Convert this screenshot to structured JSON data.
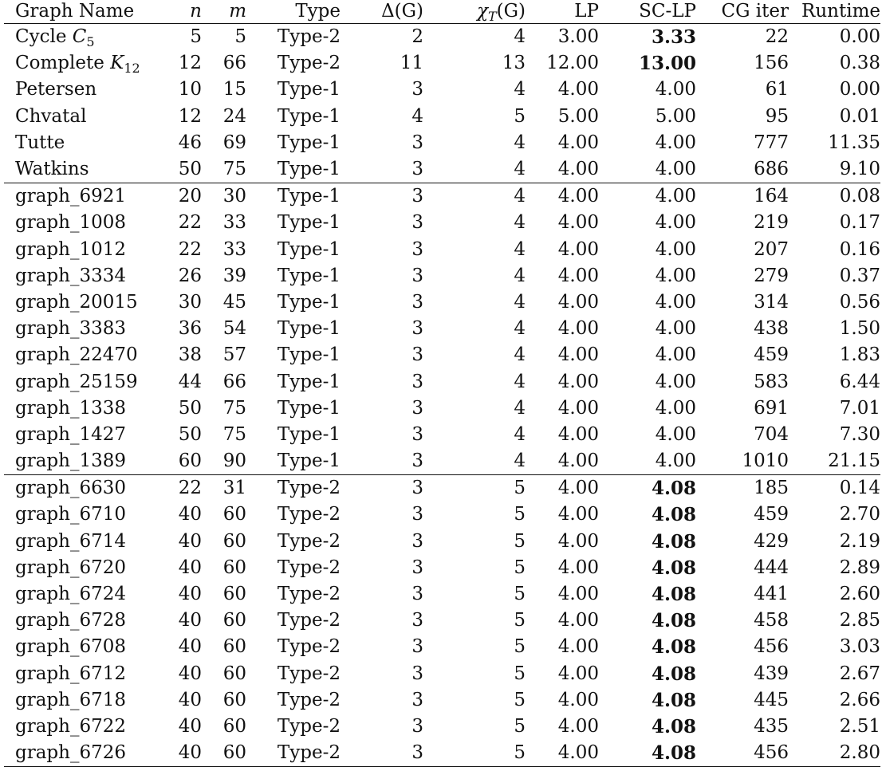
{
  "columns": {
    "name": "Graph Name",
    "n": "n",
    "m": "m",
    "type": "Type",
    "delta": "Δ(G)",
    "chi": "χ",
    "chi_sub": "T",
    "chi_suffix": "(G)",
    "lp": "LP",
    "sclp": "SC-LP",
    "cg": "CG iter",
    "runtime": "Runtime"
  },
  "rows": [
    {
      "name": "Cycle C",
      "name_sub": "5",
      "n": "5",
      "m": "5",
      "type": "Type-2",
      "delta": "2",
      "chi": "4",
      "lp": "3.00",
      "sclp": "3.33",
      "sclp_bold": true,
      "cg": "22",
      "runtime": "0.00",
      "group_start": false
    },
    {
      "name": "Complete K",
      "name_sub": "12",
      "n": "12",
      "m": "66",
      "type": "Type-2",
      "delta": "11",
      "chi": "13",
      "lp": "12.00",
      "sclp": "13.00",
      "sclp_bold": true,
      "cg": "156",
      "runtime": "0.38",
      "group_start": false
    },
    {
      "name": "Petersen",
      "name_sub": "",
      "n": "10",
      "m": "15",
      "type": "Type-1",
      "delta": "3",
      "chi": "4",
      "lp": "4.00",
      "sclp": "4.00",
      "sclp_bold": false,
      "cg": "61",
      "runtime": "0.00",
      "group_start": false
    },
    {
      "name": "Chvatal",
      "name_sub": "",
      "n": "12",
      "m": "24",
      "type": "Type-1",
      "delta": "4",
      "chi": "5",
      "lp": "5.00",
      "sclp": "5.00",
      "sclp_bold": false,
      "cg": "95",
      "runtime": "0.01",
      "group_start": false
    },
    {
      "name": "Tutte",
      "name_sub": "",
      "n": "46",
      "m": "69",
      "type": "Type-1",
      "delta": "3",
      "chi": "4",
      "lp": "4.00",
      "sclp": "4.00",
      "sclp_bold": false,
      "cg": "777",
      "runtime": "11.35",
      "group_start": false
    },
    {
      "name": "Watkins",
      "name_sub": "",
      "n": "50",
      "m": "75",
      "type": "Type-1",
      "delta": "3",
      "chi": "4",
      "lp": "4.00",
      "sclp": "4.00",
      "sclp_bold": false,
      "cg": "686",
      "runtime": "9.10",
      "group_start": false
    },
    {
      "name": "graph_6921",
      "name_sub": "",
      "n": "20",
      "m": "30",
      "type": "Type-1",
      "delta": "3",
      "chi": "4",
      "lp": "4.00",
      "sclp": "4.00",
      "sclp_bold": false,
      "cg": "164",
      "runtime": "0.08",
      "group_start": true
    },
    {
      "name": "graph_1008",
      "name_sub": "",
      "n": "22",
      "m": "33",
      "type": "Type-1",
      "delta": "3",
      "chi": "4",
      "lp": "4.00",
      "sclp": "4.00",
      "sclp_bold": false,
      "cg": "219",
      "runtime": "0.17",
      "group_start": false
    },
    {
      "name": "graph_1012",
      "name_sub": "",
      "n": "22",
      "m": "33",
      "type": "Type-1",
      "delta": "3",
      "chi": "4",
      "lp": "4.00",
      "sclp": "4.00",
      "sclp_bold": false,
      "cg": "207",
      "runtime": "0.16",
      "group_start": false
    },
    {
      "name": "graph_3334",
      "name_sub": "",
      "n": "26",
      "m": "39",
      "type": "Type-1",
      "delta": "3",
      "chi": "4",
      "lp": "4.00",
      "sclp": "4.00",
      "sclp_bold": false,
      "cg": "279",
      "runtime": "0.37",
      "group_start": false
    },
    {
      "name": "graph_20015",
      "name_sub": "",
      "n": "30",
      "m": "45",
      "type": "Type-1",
      "delta": "3",
      "chi": "4",
      "lp": "4.00",
      "sclp": "4.00",
      "sclp_bold": false,
      "cg": "314",
      "runtime": "0.56",
      "group_start": false
    },
    {
      "name": "graph_3383",
      "name_sub": "",
      "n": "36",
      "m": "54",
      "type": "Type-1",
      "delta": "3",
      "chi": "4",
      "lp": "4.00",
      "sclp": "4.00",
      "sclp_bold": false,
      "cg": "438",
      "runtime": "1.50",
      "group_start": false
    },
    {
      "name": "graph_22470",
      "name_sub": "",
      "n": "38",
      "m": "57",
      "type": "Type-1",
      "delta": "3",
      "chi": "4",
      "lp": "4.00",
      "sclp": "4.00",
      "sclp_bold": false,
      "cg": "459",
      "runtime": "1.83",
      "group_start": false
    },
    {
      "name": "graph_25159",
      "name_sub": "",
      "n": "44",
      "m": "66",
      "type": "Type-1",
      "delta": "3",
      "chi": "4",
      "lp": "4.00",
      "sclp": "4.00",
      "sclp_bold": false,
      "cg": "583",
      "runtime": "6.44",
      "group_start": false
    },
    {
      "name": "graph_1338",
      "name_sub": "",
      "n": "50",
      "m": "75",
      "type": "Type-1",
      "delta": "3",
      "chi": "4",
      "lp": "4.00",
      "sclp": "4.00",
      "sclp_bold": false,
      "cg": "691",
      "runtime": "7.01",
      "group_start": false
    },
    {
      "name": "graph_1427",
      "name_sub": "",
      "n": "50",
      "m": "75",
      "type": "Type-1",
      "delta": "3",
      "chi": "4",
      "lp": "4.00",
      "sclp": "4.00",
      "sclp_bold": false,
      "cg": "704",
      "runtime": "7.30",
      "group_start": false
    },
    {
      "name": "graph_1389",
      "name_sub": "",
      "n": "60",
      "m": "90",
      "type": "Type-1",
      "delta": "3",
      "chi": "4",
      "lp": "4.00",
      "sclp": "4.00",
      "sclp_bold": false,
      "cg": "1010",
      "runtime": "21.15",
      "group_start": false
    },
    {
      "name": "graph_6630",
      "name_sub": "",
      "n": "22",
      "m": "31",
      "type": "Type-2",
      "delta": "3",
      "chi": "5",
      "lp": "4.00",
      "sclp": "4.08",
      "sclp_bold": true,
      "cg": "185",
      "runtime": "0.14",
      "group_start": true
    },
    {
      "name": "graph_6710",
      "name_sub": "",
      "n": "40",
      "m": "60",
      "type": "Type-2",
      "delta": "3",
      "chi": "5",
      "lp": "4.00",
      "sclp": "4.08",
      "sclp_bold": true,
      "cg": "459",
      "runtime": "2.70",
      "group_start": false
    },
    {
      "name": "graph_6714",
      "name_sub": "",
      "n": "40",
      "m": "60",
      "type": "Type-2",
      "delta": "3",
      "chi": "5",
      "lp": "4.00",
      "sclp": "4.08",
      "sclp_bold": true,
      "cg": "429",
      "runtime": "2.19",
      "group_start": false
    },
    {
      "name": "graph_6720",
      "name_sub": "",
      "n": "40",
      "m": "60",
      "type": "Type-2",
      "delta": "3",
      "chi": "5",
      "lp": "4.00",
      "sclp": "4.08",
      "sclp_bold": true,
      "cg": "444",
      "runtime": "2.89",
      "group_start": false
    },
    {
      "name": "graph_6724",
      "name_sub": "",
      "n": "40",
      "m": "60",
      "type": "Type-2",
      "delta": "3",
      "chi": "5",
      "lp": "4.00",
      "sclp": "4.08",
      "sclp_bold": true,
      "cg": "441",
      "runtime": "2.60",
      "group_start": false
    },
    {
      "name": "graph_6728",
      "name_sub": "",
      "n": "40",
      "m": "60",
      "type": "Type-2",
      "delta": "3",
      "chi": "5",
      "lp": "4.00",
      "sclp": "4.08",
      "sclp_bold": true,
      "cg": "458",
      "runtime": "2.85",
      "group_start": false
    },
    {
      "name": "graph_6708",
      "name_sub": "",
      "n": "40",
      "m": "60",
      "type": "Type-2",
      "delta": "3",
      "chi": "5",
      "lp": "4.00",
      "sclp": "4.08",
      "sclp_bold": true,
      "cg": "456",
      "runtime": "3.03",
      "group_start": false
    },
    {
      "name": "graph_6712",
      "name_sub": "",
      "n": "40",
      "m": "60",
      "type": "Type-2",
      "delta": "3",
      "chi": "5",
      "lp": "4.00",
      "sclp": "4.08",
      "sclp_bold": true,
      "cg": "439",
      "runtime": "2.67",
      "group_start": false
    },
    {
      "name": "graph_6718",
      "name_sub": "",
      "n": "40",
      "m": "60",
      "type": "Type-2",
      "delta": "3",
      "chi": "5",
      "lp": "4.00",
      "sclp": "4.08",
      "sclp_bold": true,
      "cg": "445",
      "runtime": "2.66",
      "group_start": false
    },
    {
      "name": "graph_6722",
      "name_sub": "",
      "n": "40",
      "m": "60",
      "type": "Type-2",
      "delta": "3",
      "chi": "5",
      "lp": "4.00",
      "sclp": "4.08",
      "sclp_bold": true,
      "cg": "435",
      "runtime": "2.51",
      "group_start": false
    },
    {
      "name": "graph_6726",
      "name_sub": "",
      "n": "40",
      "m": "60",
      "type": "Type-2",
      "delta": "3",
      "chi": "5",
      "lp": "4.00",
      "sclp": "4.08",
      "sclp_bold": true,
      "cg": "456",
      "runtime": "2.80",
      "group_start": false
    }
  ]
}
